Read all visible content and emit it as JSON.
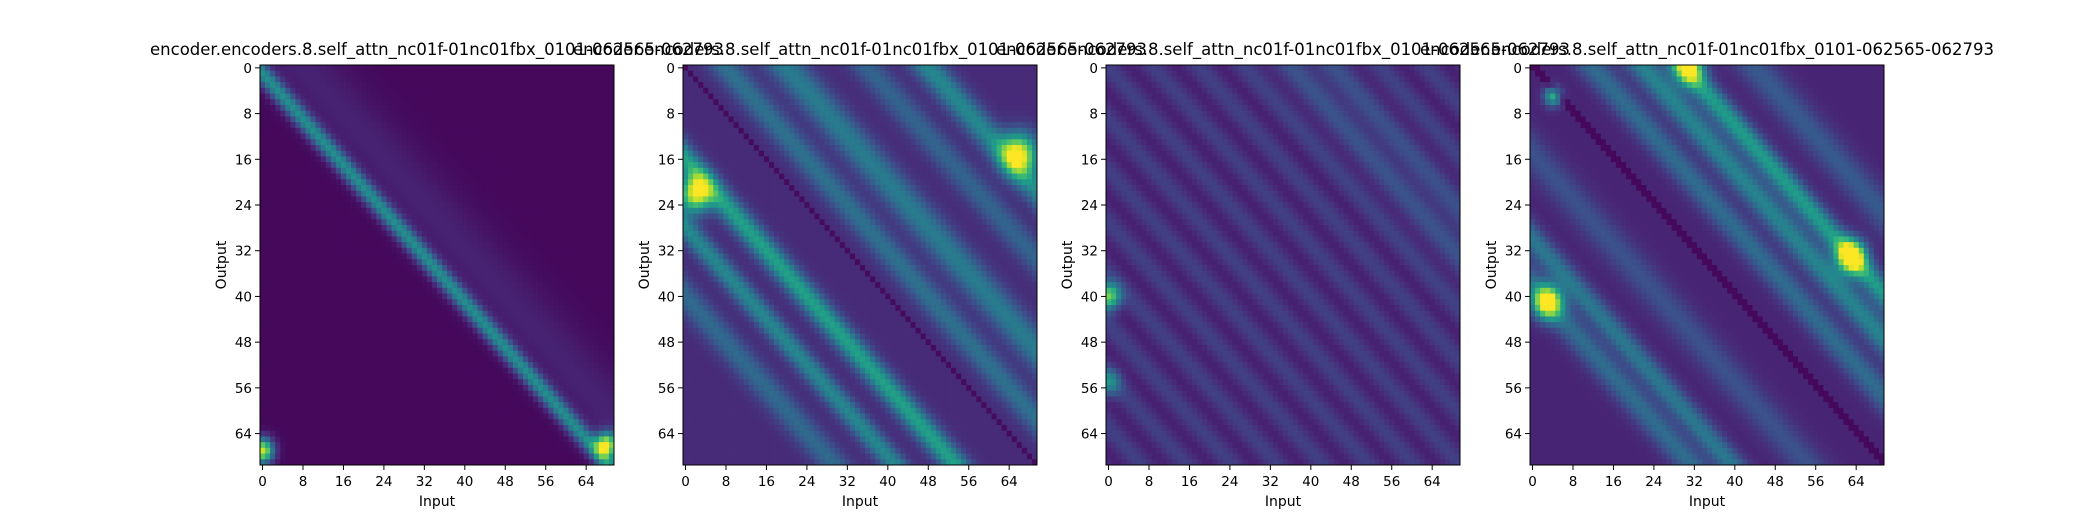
{
  "chart_data": [
    {
      "type": "heatmap",
      "title": "encoder.encoders.8.self_attn_nc01f-01nc01fbx_0101-062565-062793",
      "xlabel": "Input",
      "ylabel": "Output",
      "xticks": [
        0,
        8,
        16,
        24,
        32,
        40,
        48,
        56,
        64
      ],
      "yticks": [
        0,
        8,
        16,
        24,
        32,
        40,
        48,
        56,
        64
      ],
      "size": 70,
      "colormap": "viridis",
      "pattern": {
        "kind": "diagonal-band",
        "description": "single bright band just below the main diagonal, dark elsewhere, bright spots at bottom corners"
      }
    },
    {
      "type": "heatmap",
      "title": "encoder.encoders.8.self_attn_nc01f-01nc01fbx_0101-062565-062793",
      "xlabel": "Input",
      "ylabel": "Output",
      "xticks": [
        0,
        8,
        16,
        24,
        32,
        40,
        48,
        56,
        64
      ],
      "yticks": [
        0,
        8,
        16,
        24,
        32,
        40,
        48,
        56,
        64
      ],
      "size": 70,
      "colormap": "viridis",
      "pattern": {
        "kind": "multi-diagonal",
        "description": "several parallel diagonal stripes with a dark main diagonal, bright spots near left edge rows 20-26 and right edge rows 12-18"
      }
    },
    {
      "type": "heatmap",
      "title": "encoder.encoders.8.self_attn_nc01f-01nc01fbx_0101-062565-062793",
      "xlabel": "Input",
      "ylabel": "Output",
      "xticks": [
        0,
        8,
        16,
        24,
        32,
        40,
        48,
        56,
        64
      ],
      "yticks": [
        0,
        8,
        16,
        24,
        32,
        40,
        48,
        56,
        64
      ],
      "size": 70,
      "colormap": "viridis",
      "pattern": {
        "kind": "faint-stripes",
        "description": "faint periodic diagonal stripes, brighter column at input 0 around output 40"
      }
    },
    {
      "type": "heatmap",
      "title": "encoder.encoders.8.self_attn_nc01f-01nc01fbx_0101-062565-062793",
      "xlabel": "Input",
      "ylabel": "Output",
      "xticks": [
        0,
        8,
        16,
        24,
        32,
        40,
        48,
        56,
        64
      ],
      "yticks": [
        0,
        8,
        16,
        24,
        32,
        40,
        48,
        56,
        64
      ],
      "size": 70,
      "colormap": "viridis",
      "pattern": {
        "kind": "upper-stripes",
        "description": "strong dark main diagonal, bright stripes above diagonal, bright spots near input 32 top and input 63 around output 33, left spots near output 40"
      }
    }
  ]
}
